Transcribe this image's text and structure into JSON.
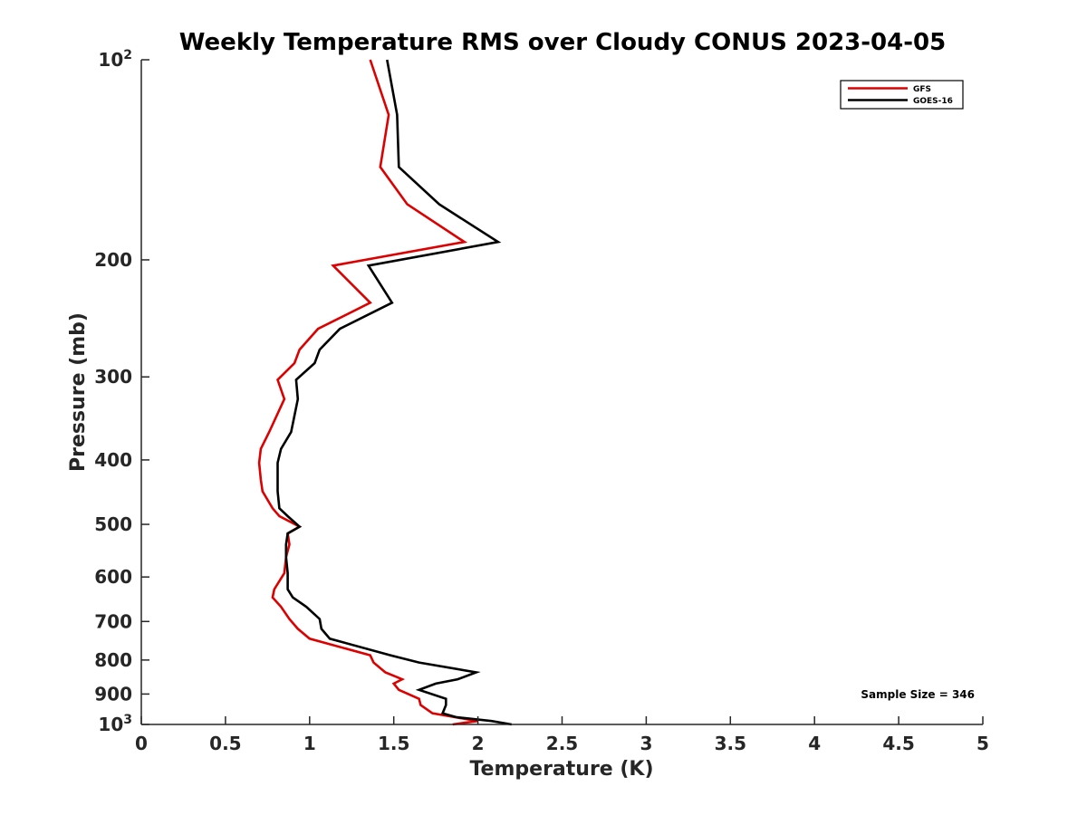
{
  "chart_data": {
    "type": "line",
    "title": "Weekly Temperature RMS over Cloudy CONUS 2023-04-05",
    "xlabel": "Temperature (K)",
    "ylabel": "Pressure (mb)",
    "xlim": [
      0,
      5
    ],
    "ylim": [
      100,
      1000
    ],
    "y_scale": "log",
    "y_reversed": true,
    "grid": false,
    "x_ticks": [
      0,
      0.5,
      1,
      1.5,
      2,
      2.5,
      3,
      3.5,
      4,
      4.5,
      5
    ],
    "x_tick_labels": [
      "0",
      "0.5",
      "1",
      "1.5",
      "2",
      "2.5",
      "3",
      "3.5",
      "4",
      "4.5",
      "5"
    ],
    "y_ticks": [
      {
        "value": 100,
        "label": "10",
        "sup": "2"
      },
      {
        "value": 200,
        "label": "200",
        "sup": ""
      },
      {
        "value": 300,
        "label": "300",
        "sup": ""
      },
      {
        "value": 400,
        "label": "400",
        "sup": ""
      },
      {
        "value": 500,
        "label": "500",
        "sup": ""
      },
      {
        "value": 600,
        "label": "600",
        "sup": ""
      },
      {
        "value": 700,
        "label": "700",
        "sup": ""
      },
      {
        "value": 800,
        "label": "800",
        "sup": ""
      },
      {
        "value": 900,
        "label": "900",
        "sup": ""
      },
      {
        "value": 1000,
        "label": "10",
        "sup": "3"
      }
    ],
    "legend_position": "top-right",
    "series": [
      {
        "name": "GFS",
        "color": "#dd0000",
        "points": [
          [
            1.36,
            100
          ],
          [
            1.47,
            121
          ],
          [
            1.42,
            145
          ],
          [
            1.58,
            165
          ],
          [
            1.92,
            188
          ],
          [
            1.14,
            204
          ],
          [
            1.36,
            232
          ],
          [
            1.05,
            254
          ],
          [
            0.94,
            273
          ],
          [
            0.91,
            286
          ],
          [
            0.81,
            303
          ],
          [
            0.85,
            324
          ],
          [
            0.76,
            363
          ],
          [
            0.71,
            385
          ],
          [
            0.7,
            404
          ],
          [
            0.71,
            428
          ],
          [
            0.72,
            446
          ],
          [
            0.78,
            473
          ],
          [
            0.82,
            486
          ],
          [
            0.94,
            504
          ],
          [
            0.87,
            516
          ],
          [
            0.88,
            536
          ],
          [
            0.86,
            560
          ],
          [
            0.85,
            592
          ],
          [
            0.79,
            626
          ],
          [
            0.78,
            644
          ],
          [
            0.83,
            665
          ],
          [
            0.88,
            694
          ],
          [
            0.93,
            718
          ],
          [
            1.0,
            743
          ],
          [
            1.36,
            787
          ],
          [
            1.38,
            807
          ],
          [
            1.45,
            835
          ],
          [
            1.55,
            855
          ],
          [
            1.5,
            868
          ],
          [
            1.53,
            887
          ],
          [
            1.65,
            915
          ],
          [
            1.66,
            935
          ],
          [
            1.73,
            962
          ],
          [
            1.86,
            975
          ],
          [
            2.0,
            988
          ],
          [
            1.85,
            1000
          ]
        ]
      },
      {
        "name": "GOES-16",
        "color": "#000000",
        "points": [
          [
            1.46,
            100
          ],
          [
            1.52,
            121
          ],
          [
            1.53,
            145
          ],
          [
            1.77,
            165
          ],
          [
            2.12,
            188
          ],
          [
            1.35,
            204
          ],
          [
            1.49,
            232
          ],
          [
            1.18,
            254
          ],
          [
            1.06,
            273
          ],
          [
            1.03,
            286
          ],
          [
            0.92,
            303
          ],
          [
            0.93,
            324
          ],
          [
            0.89,
            363
          ],
          [
            0.83,
            385
          ],
          [
            0.81,
            404
          ],
          [
            0.81,
            428
          ],
          [
            0.81,
            446
          ],
          [
            0.82,
            473
          ],
          [
            0.87,
            486
          ],
          [
            0.94,
            504
          ],
          [
            0.87,
            516
          ],
          [
            0.86,
            536
          ],
          [
            0.86,
            560
          ],
          [
            0.87,
            592
          ],
          [
            0.87,
            626
          ],
          [
            0.9,
            644
          ],
          [
            0.98,
            665
          ],
          [
            1.06,
            694
          ],
          [
            1.07,
            718
          ],
          [
            1.12,
            743
          ],
          [
            1.48,
            787
          ],
          [
            1.65,
            807
          ],
          [
            1.99,
            835
          ],
          [
            1.88,
            855
          ],
          [
            1.75,
            868
          ],
          [
            1.65,
            887
          ],
          [
            1.81,
            915
          ],
          [
            1.81,
            935
          ],
          [
            1.79,
            962
          ],
          [
            1.87,
            975
          ],
          [
            2.08,
            988
          ],
          [
            2.2,
            1000
          ]
        ]
      }
    ],
    "annotation": "Sample Size = 346"
  }
}
